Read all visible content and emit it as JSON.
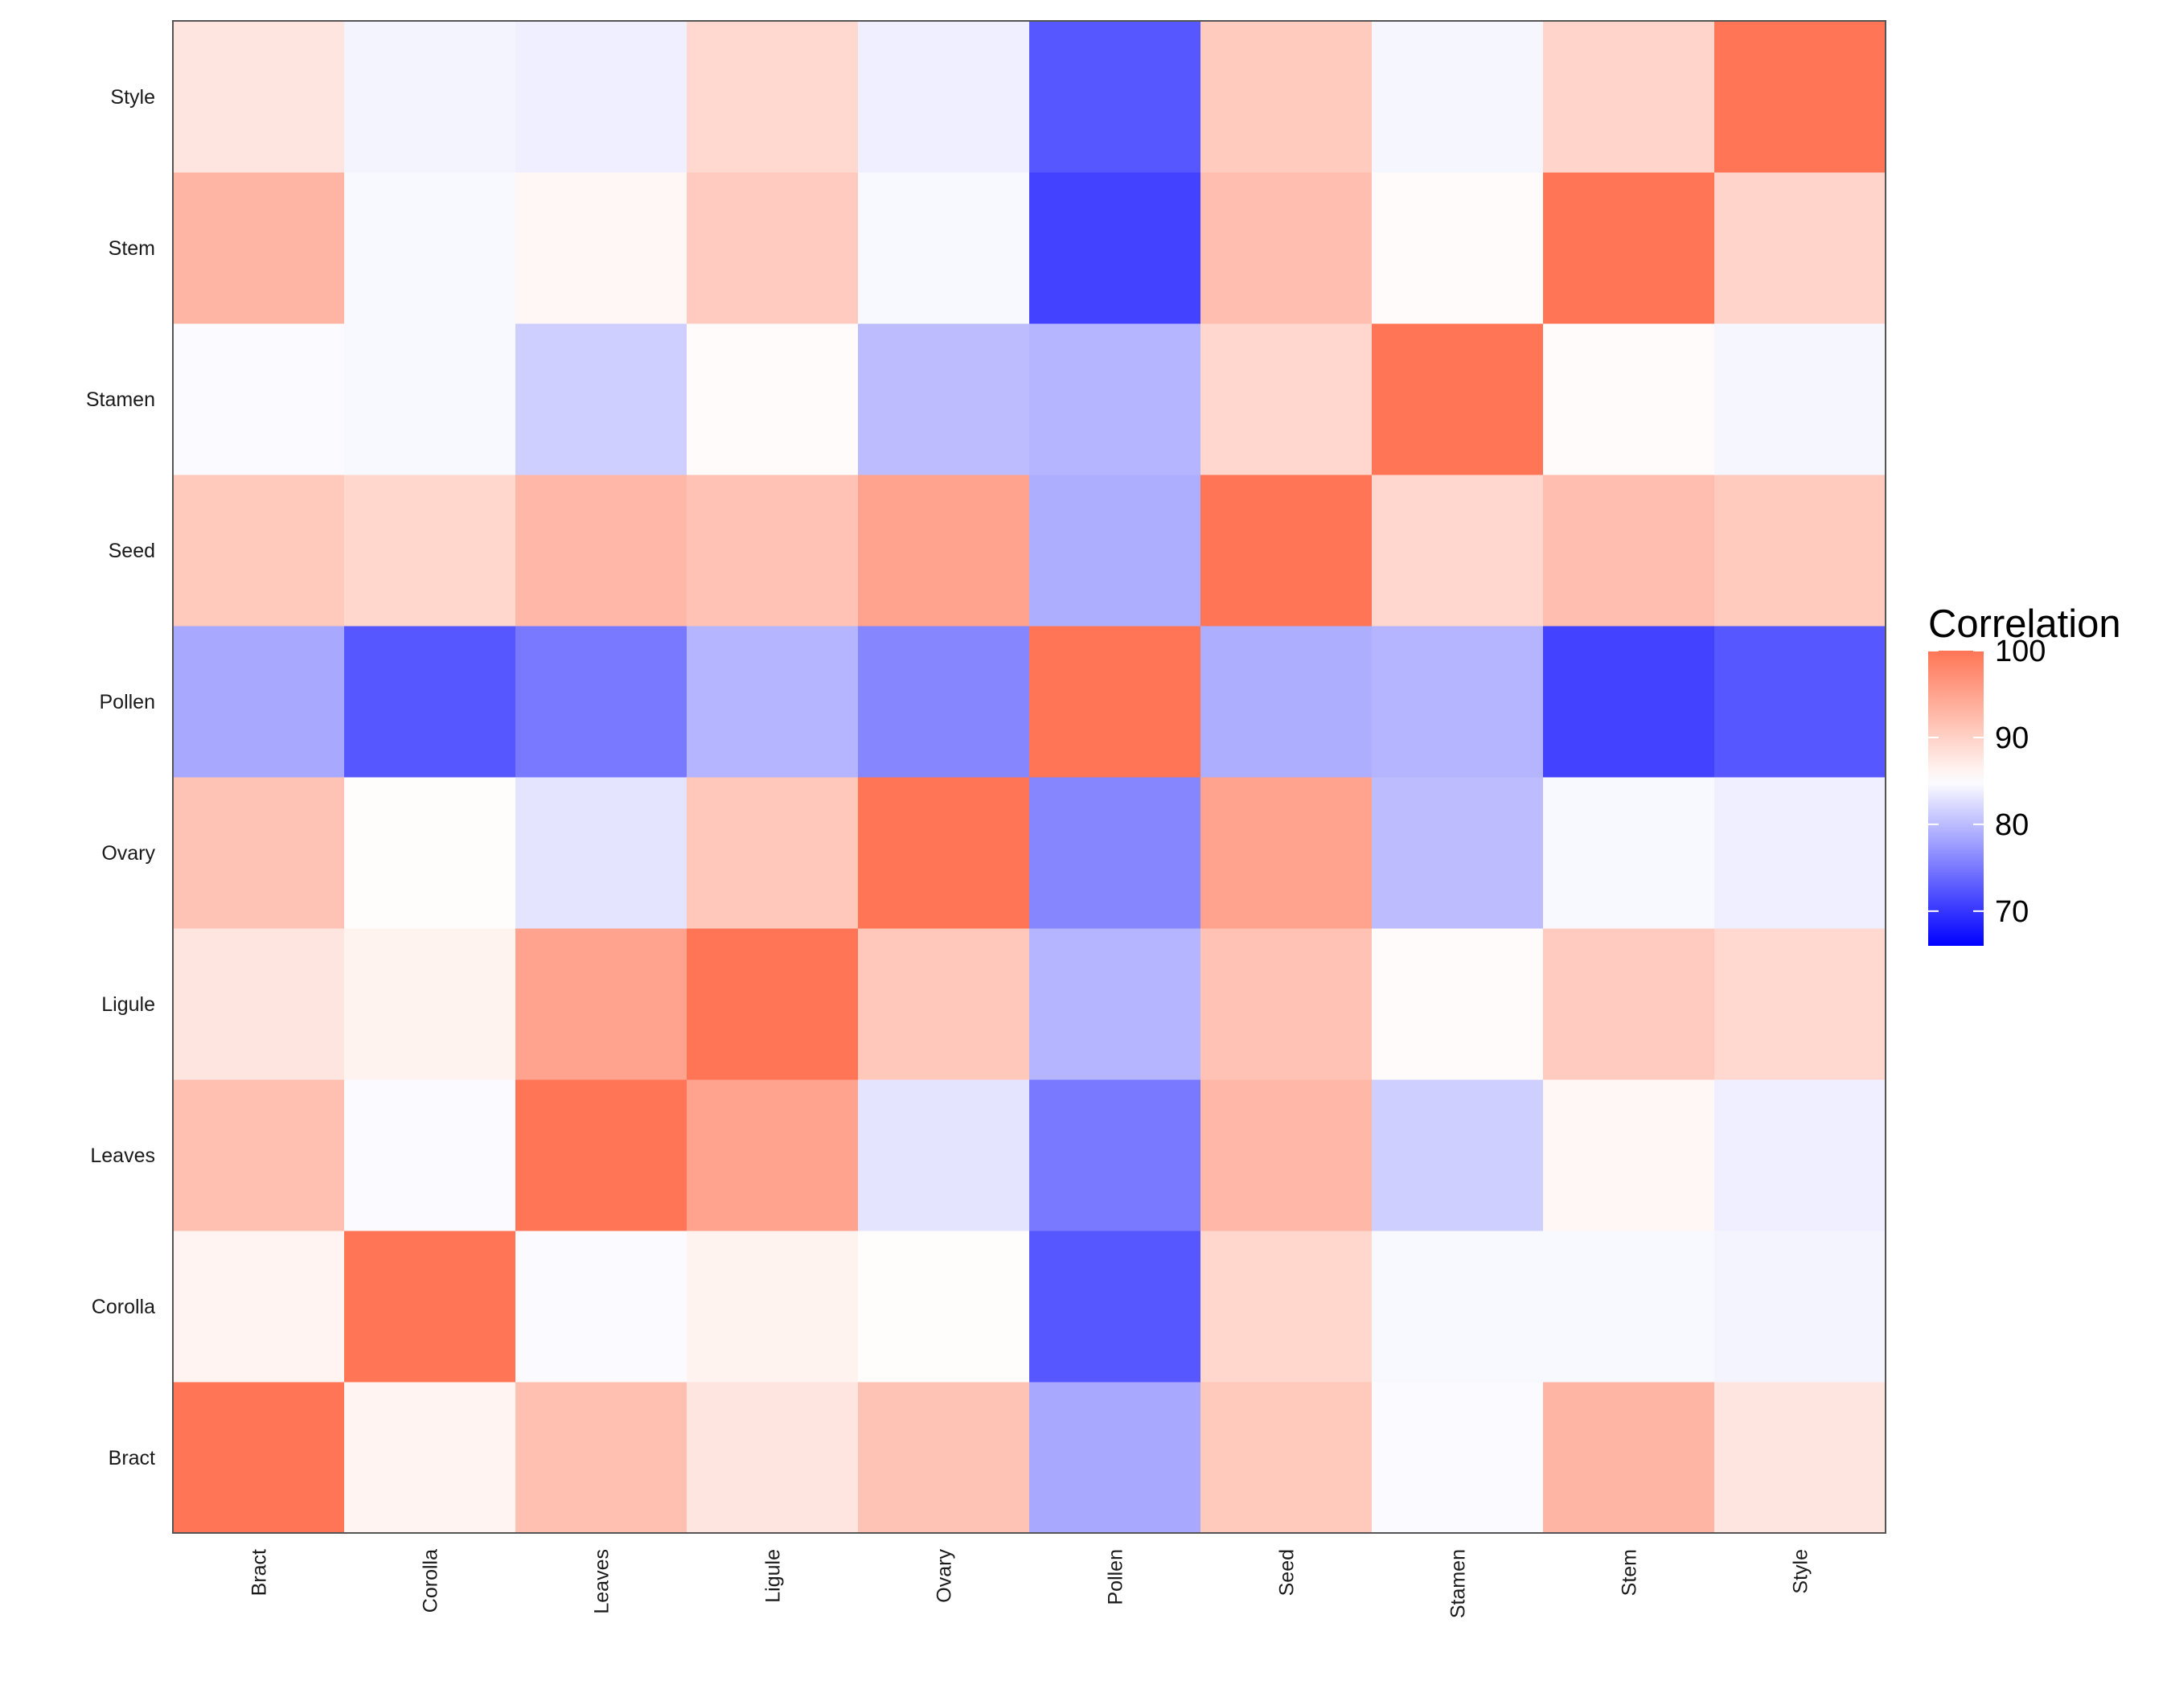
{
  "chart_data": {
    "type": "heatmap",
    "x_categories": [
      "Bract",
      "Corolla",
      "Leaves",
      "Ligule",
      "Ovary",
      "Pollen",
      "Seed",
      "Stamen",
      "Stem",
      "Style"
    ],
    "y_categories": [
      "Bract",
      "Corolla",
      "Leaves",
      "Ligule",
      "Ovary",
      "Pollen",
      "Seed",
      "Stamen",
      "Stem",
      "Style"
    ],
    "values": [
      [
        100,
        86.2,
        91.8,
        87.8,
        91.5,
        78.5,
        90.9,
        84.7,
        93,
        87.8
      ],
      [
        86.2,
        100,
        84.6,
        86.3,
        85.3,
        72.5,
        89.4,
        84.5,
        84.5,
        84.2
      ],
      [
        91.8,
        84.6,
        100,
        95,
        83,
        75,
        92.7,
        81.4,
        85.9,
        83.8
      ],
      [
        87.8,
        86.3,
        95,
        100,
        91,
        79.5,
        91.6,
        85.4,
        90.6,
        89.2
      ],
      [
        91.5,
        85.3,
        83,
        91,
        100,
        76,
        95,
        80,
        84.5,
        83.8
      ],
      [
        78.5,
        72.5,
        75,
        79.5,
        76,
        100,
        79,
        79.5,
        71,
        72.5
      ],
      [
        90.9,
        89.4,
        92.7,
        91.6,
        95,
        79,
        100,
        89.3,
        92.1,
        90.7
      ],
      [
        84.7,
        84.5,
        81.4,
        85.4,
        80,
        79.5,
        89.3,
        100,
        85.4,
        84.3
      ],
      [
        93,
        84.5,
        85.9,
        90.6,
        84.5,
        71,
        92.1,
        85.4,
        100,
        89.6
      ],
      [
        87.8,
        84.2,
        83.8,
        89.2,
        83.8,
        72.5,
        90.7,
        84.3,
        89.6,
        100
      ]
    ],
    "color_scale": {
      "low_color": "#0000FF",
      "mid_color": "#FFFFFF",
      "high_color": "#FF7555",
      "range": [
        66,
        100
      ],
      "midpoint": 85
    },
    "legend": {
      "title": "Correlation",
      "ticks": [
        100,
        90,
        80,
        70
      ],
      "position": "right"
    },
    "title": "",
    "xlabel": "",
    "ylabel": "",
    "grid": false
  }
}
